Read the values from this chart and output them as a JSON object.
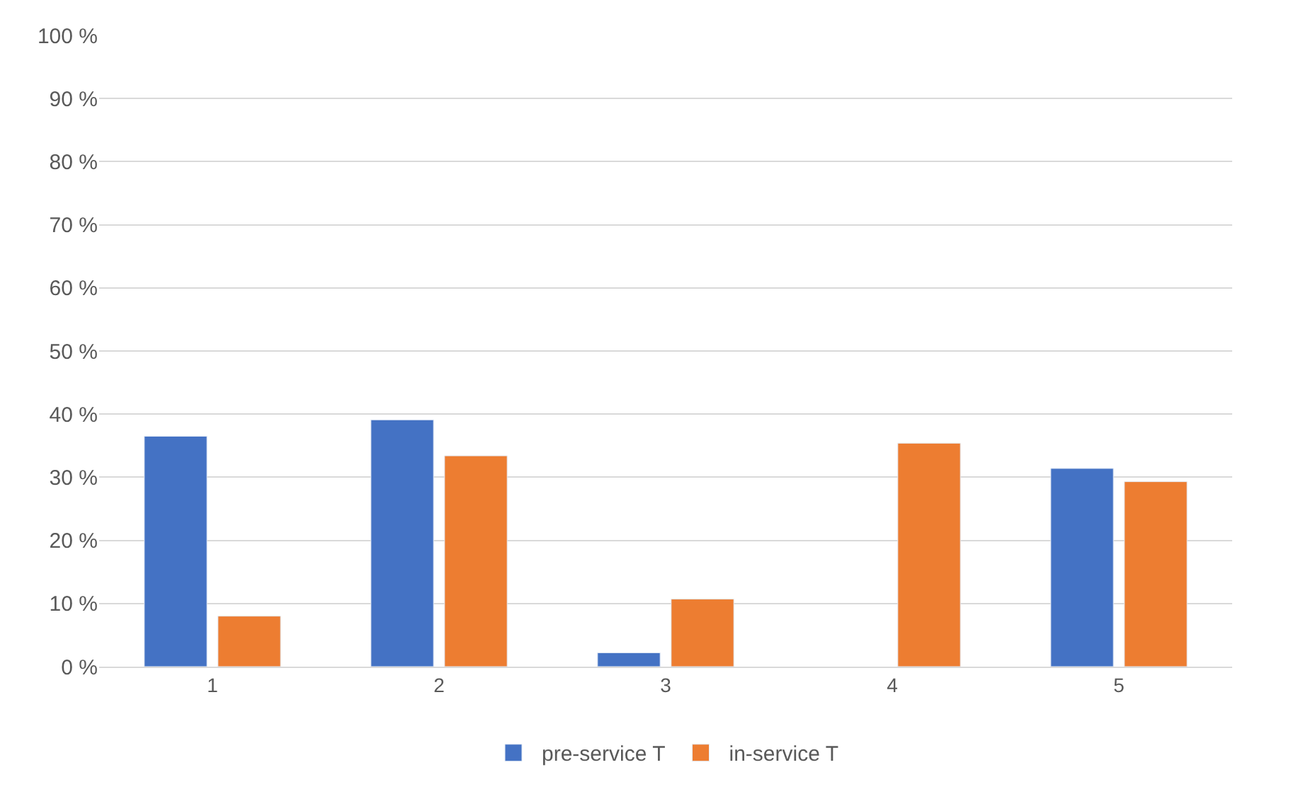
{
  "chart_data": {
    "type": "bar",
    "categories": [
      "1",
      "2",
      "3",
      "4",
      "5"
    ],
    "series": [
      {
        "name": "pre-service T",
        "color": "#4472c4",
        "values": [
          36.5,
          39.1,
          2.2,
          null,
          31.4
        ]
      },
      {
        "name": "in-service T",
        "color": "#ed7d31",
        "values": [
          8.0,
          33.4,
          10.7,
          35.4,
          29.3
        ]
      }
    ],
    "ylim": [
      0,
      100
    ],
    "yticks": [
      {
        "value": 0,
        "label": "0 %"
      },
      {
        "value": 10,
        "label": "10 %"
      },
      {
        "value": 20,
        "label": "20 %"
      },
      {
        "value": 30,
        "label": "30 %"
      },
      {
        "value": 40,
        "label": "40 %"
      },
      {
        "value": 50,
        "label": "50 %"
      },
      {
        "value": 60,
        "label": "60 %"
      },
      {
        "value": 70,
        "label": "70 %"
      },
      {
        "value": 80,
        "label": "80 %"
      },
      {
        "value": 90,
        "label": "90 %"
      },
      {
        "value": 100,
        "label": "100 %"
      }
    ],
    "grid": "y",
    "legend": "bottom"
  }
}
